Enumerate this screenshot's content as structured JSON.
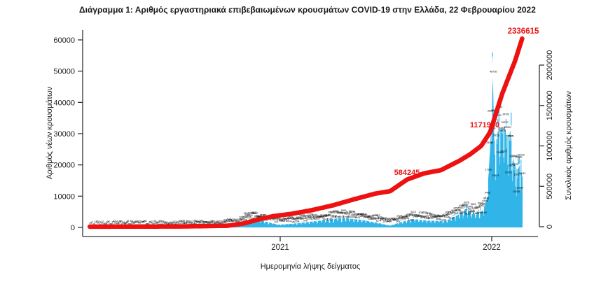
{
  "title": "Διάγραμμα 1: Αριθμός εργαστηριακά επιβεβαιωμένων κρουσμάτων COVID-19 στην Ελλάδα, 22 Φεβρουαρίου 2022",
  "colors": {
    "bar": "#31b4e7",
    "cumulative_line": "#ed1111",
    "moving_average_line": "#ffffff",
    "point_labels": "#000000",
    "axis": "#333333",
    "annotation_text": "#ed1111"
  },
  "chart_data": {
    "type": "combo",
    "title": "Διάγραμμα 1: Αριθμός εργαστηριακά επιβεβαιωμένων κρουσμάτων COVID-19 στην Ελλάδα, 22 Φεβρουαρίου 2022",
    "x_axis": {
      "label": "Ημερομηνία λήψης δείγματος",
      "tick_labels": [
        "2021",
        "2022"
      ],
      "range_decimal_years": [
        2020.1,
        2022.145
      ]
    },
    "left_axis": {
      "label": "Αριθμός νέων κρουσμάτων",
      "ticks": [
        0,
        10000,
        20000,
        30000,
        40000,
        50000,
        60000
      ],
      "lim": [
        0,
        60000
      ]
    },
    "right_axis": {
      "label": "Συνολικός αριθμός κρουσμάτων",
      "ticks": [
        0,
        500000,
        1000000,
        1500000,
        2000000
      ],
      "lim": [
        0,
        2000000
      ]
    },
    "annotations": [
      {
        "text": "584245",
        "meaning": "cumulative cases milestone mid-2021"
      },
      {
        "text": "1171950",
        "meaning": "cumulative cases milestone around New Year 2022"
      },
      {
        "text": "2336615",
        "meaning": "total confirmed cases on 22 February 2022"
      }
    ],
    "series": [
      {
        "name": "daily_new_cases",
        "type": "bar",
        "axis": "left",
        "color": "#31b4e7",
        "keypoints": [
          [
            2020.1,
            3
          ],
          [
            2020.3,
            60
          ],
          [
            2020.55,
            110
          ],
          [
            2020.72,
            280
          ],
          [
            2020.8,
            900
          ],
          [
            2020.845,
            2400
          ],
          [
            2020.875,
            3400
          ],
          [
            2020.92,
            2300
          ],
          [
            2020.99,
            1100
          ],
          [
            2021.06,
            1400
          ],
          [
            2021.15,
            2100
          ],
          [
            2021.24,
            2900
          ],
          [
            2021.3,
            3300
          ],
          [
            2021.38,
            2700
          ],
          [
            2021.46,
            1700
          ],
          [
            2021.52,
            800
          ],
          [
            2021.57,
            1900
          ],
          [
            2021.63,
            2900
          ],
          [
            2021.7,
            2400
          ],
          [
            2021.78,
            2300
          ],
          [
            2021.84,
            4200
          ],
          [
            2021.875,
            6200
          ],
          [
            2021.92,
            4800
          ],
          [
            2021.955,
            5400
          ],
          [
            2021.975,
            9500
          ],
          [
            2021.995,
            32000
          ],
          [
            2022.005,
            60500
          ],
          [
            2022.015,
            28000
          ],
          [
            2022.035,
            33000
          ],
          [
            2022.055,
            36500
          ],
          [
            2022.075,
            28000
          ],
          [
            2022.09,
            33000
          ],
          [
            2022.105,
            22000
          ],
          [
            2022.12,
            18500
          ],
          [
            2022.135,
            21000
          ],
          [
            2022.145,
            18500
          ]
        ]
      },
      {
        "name": "moving_average",
        "type": "line",
        "axis": "left",
        "color": "#ffffff"
      },
      {
        "name": "cumulative_cases",
        "type": "line",
        "axis": "right",
        "color": "#ed1111",
        "final_value": 2336615,
        "keypoints": [
          [
            2020.1,
            500
          ],
          [
            2020.55,
            4000
          ],
          [
            2020.75,
            12000
          ],
          [
            2020.83,
            42000
          ],
          [
            2020.9,
            92000
          ],
          [
            2020.97,
            132000
          ],
          [
            2021.05,
            158000
          ],
          [
            2021.15,
            205000
          ],
          [
            2021.25,
            265000
          ],
          [
            2021.35,
            340000
          ],
          [
            2021.45,
            410000
          ],
          [
            2021.52,
            440000
          ],
          [
            2021.6,
            584245
          ],
          [
            2021.68,
            660000
          ],
          [
            2021.76,
            700000
          ],
          [
            2021.85,
            820000
          ],
          [
            2021.9,
            900000
          ],
          [
            2021.95,
            1000000
          ],
          [
            2021.993,
            1171950
          ],
          [
            2022.02,
            1400000
          ],
          [
            2022.05,
            1650000
          ],
          [
            2022.08,
            1850000
          ],
          [
            2022.11,
            2050000
          ],
          [
            2022.145,
            2336615
          ]
        ]
      }
    ],
    "point_labels": "tiny black numeric value labels printed above every daily data point"
  }
}
